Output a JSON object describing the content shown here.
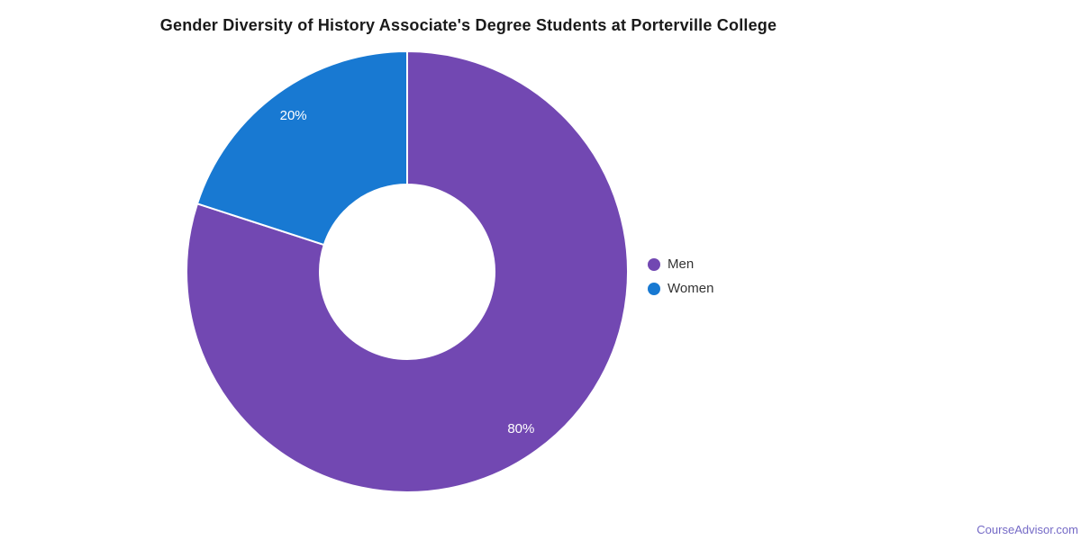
{
  "title": {
    "text": "Gender Diversity of History Associate's Degree Students at Porterville College",
    "color": "#1a1a1a"
  },
  "footer": {
    "link_text": "CourseAdvisor.com",
    "link_color": "#7469c6"
  },
  "legend": {
    "position": "right",
    "items": [
      {
        "label": "Men",
        "color": "#7248b2"
      },
      {
        "label": "Women",
        "color": "#1879d2"
      }
    ]
  },
  "chart_data": {
    "type": "pie",
    "subtype": "donut",
    "title": "Gender Diversity of History Associate's Degree Students at Porterville College",
    "series": [
      {
        "name": "Men",
        "value": 80,
        "percent_label": "80%",
        "color": "#7248b2"
      },
      {
        "name": "Women",
        "value": 20,
        "percent_label": "20%",
        "color": "#1879d2"
      }
    ],
    "start_angle_deg": 0,
    "direction": "clockwise",
    "slice_border_color": "#ffffff",
    "slice_border_width": 2,
    "label_text_color": "#ffffff",
    "legend_position": "right",
    "background": "#ffffff"
  }
}
